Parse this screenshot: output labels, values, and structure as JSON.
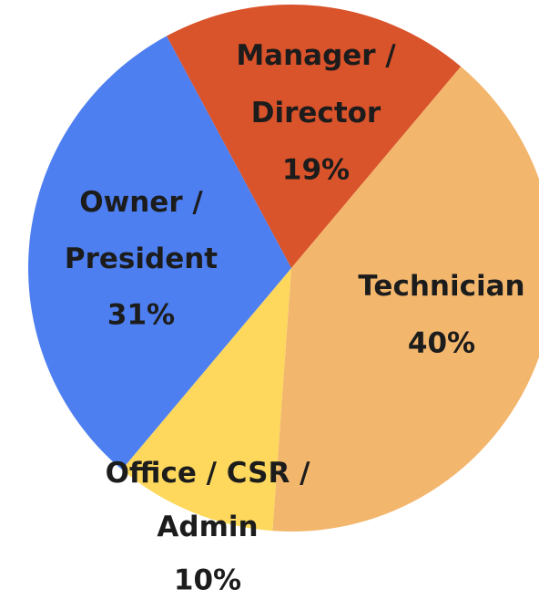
{
  "chart_data": {
    "type": "pie",
    "categories": [
      "Manager / Director",
      "Technician",
      "Office / CSR / Admin",
      "Owner / President"
    ],
    "values": [
      19,
      40,
      10,
      31
    ],
    "value_labels": [
      "19%",
      "40%",
      "10%",
      "31%"
    ],
    "colors": [
      "#d9532b",
      "#f2b66d",
      "#fdd85d",
      "#4e7ff0"
    ]
  }
}
